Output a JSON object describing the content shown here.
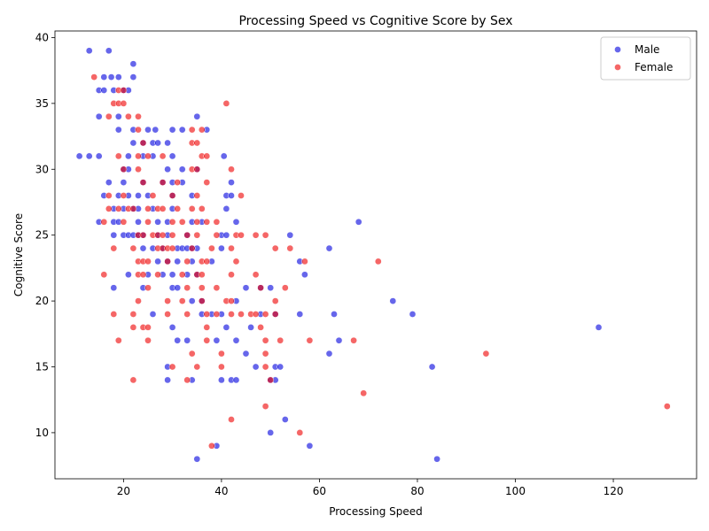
{
  "chart_data": {
    "type": "scatter",
    "title": "Processing Speed vs Cognitive Score by Sex",
    "xlabel": "Processing Speed",
    "ylabel": "Cognitive Score",
    "xlim": [
      6,
      137
    ],
    "ylim": [
      6.5,
      40.5
    ],
    "xticks": [
      20,
      40,
      60,
      80,
      100,
      120
    ],
    "yticks": [
      10,
      15,
      20,
      25,
      30,
      35,
      40
    ],
    "grid": false,
    "legend_position": "top-right",
    "series": [
      {
        "name": "Male",
        "color": "#0000dd",
        "points": [
          [
            13,
            39
          ],
          [
            17,
            39
          ],
          [
            22,
            38
          ],
          [
            16,
            37
          ],
          [
            17.5,
            37
          ],
          [
            19,
            37
          ],
          [
            22,
            37
          ],
          [
            15,
            36
          ],
          [
            16,
            36
          ],
          [
            18,
            36
          ],
          [
            20,
            36
          ],
          [
            21,
            36
          ],
          [
            15,
            34
          ],
          [
            19,
            34
          ],
          [
            35,
            34
          ],
          [
            19,
            33
          ],
          [
            22,
            33
          ],
          [
            25,
            33
          ],
          [
            26.5,
            33
          ],
          [
            30,
            33
          ],
          [
            32,
            33
          ],
          [
            37,
            33
          ],
          [
            22,
            32
          ],
          [
            24,
            32
          ],
          [
            26,
            32
          ],
          [
            27,
            32
          ],
          [
            29,
            32
          ],
          [
            11,
            31
          ],
          [
            13,
            31
          ],
          [
            15,
            31
          ],
          [
            21,
            31
          ],
          [
            24,
            31
          ],
          [
            26,
            31
          ],
          [
            30,
            31
          ],
          [
            40.5,
            31
          ],
          [
            20,
            30
          ],
          [
            21,
            30
          ],
          [
            29,
            30
          ],
          [
            32,
            30
          ],
          [
            35,
            30
          ],
          [
            17,
            29
          ],
          [
            20,
            29
          ],
          [
            24,
            29
          ],
          [
            28,
            29
          ],
          [
            30,
            29
          ],
          [
            32,
            29
          ],
          [
            42,
            29
          ],
          [
            16,
            28
          ],
          [
            19,
            28
          ],
          [
            21,
            28
          ],
          [
            23,
            28
          ],
          [
            25,
            28
          ],
          [
            30,
            28
          ],
          [
            34,
            28
          ],
          [
            41,
            28
          ],
          [
            42,
            28
          ],
          [
            18,
            27
          ],
          [
            20,
            27
          ],
          [
            22,
            27
          ],
          [
            23,
            27
          ],
          [
            26,
            27
          ],
          [
            30,
            27
          ],
          [
            41,
            27
          ],
          [
            15,
            26
          ],
          [
            18,
            26
          ],
          [
            19,
            26
          ],
          [
            23,
            26
          ],
          [
            27,
            26
          ],
          [
            29,
            26
          ],
          [
            34,
            26
          ],
          [
            36,
            26
          ],
          [
            43,
            26
          ],
          [
            68,
            26
          ],
          [
            18,
            25
          ],
          [
            20,
            25
          ],
          [
            21,
            25
          ],
          [
            22,
            25
          ],
          [
            23,
            25
          ],
          [
            24,
            25
          ],
          [
            27,
            25
          ],
          [
            29,
            25
          ],
          [
            33,
            25
          ],
          [
            40,
            25
          ],
          [
            41,
            25
          ],
          [
            54,
            25
          ],
          [
            24,
            24
          ],
          [
            26,
            24
          ],
          [
            28,
            24
          ],
          [
            31,
            24
          ],
          [
            32,
            24
          ],
          [
            33,
            24
          ],
          [
            34,
            24
          ],
          [
            35,
            24
          ],
          [
            40,
            24
          ],
          [
            62,
            24
          ],
          [
            27,
            23
          ],
          [
            29,
            23
          ],
          [
            31,
            23
          ],
          [
            34,
            23
          ],
          [
            38,
            23
          ],
          [
            56,
            23
          ],
          [
            21,
            22
          ],
          [
            25,
            22
          ],
          [
            28,
            22
          ],
          [
            30,
            22
          ],
          [
            33,
            22
          ],
          [
            35,
            22
          ],
          [
            57,
            22
          ],
          [
            18,
            21
          ],
          [
            24,
            21
          ],
          [
            30,
            21
          ],
          [
            31,
            21
          ],
          [
            45,
            21
          ],
          [
            48,
            21
          ],
          [
            50,
            21
          ],
          [
            34,
            20
          ],
          [
            36,
            20
          ],
          [
            43,
            20
          ],
          [
            75,
            20
          ],
          [
            26,
            19
          ],
          [
            36,
            19
          ],
          [
            38,
            19
          ],
          [
            40,
            19
          ],
          [
            48,
            19
          ],
          [
            51,
            19
          ],
          [
            56,
            19
          ],
          [
            63,
            19
          ],
          [
            79,
            19
          ],
          [
            30,
            18
          ],
          [
            41,
            18
          ],
          [
            46,
            18
          ],
          [
            117,
            18
          ],
          [
            31,
            17
          ],
          [
            33,
            17
          ],
          [
            39,
            17
          ],
          [
            43,
            17
          ],
          [
            64,
            17
          ],
          [
            45,
            16
          ],
          [
            62,
            16
          ],
          [
            29,
            15
          ],
          [
            47,
            15
          ],
          [
            51,
            15
          ],
          [
            52,
            15
          ],
          [
            83,
            15
          ],
          [
            29,
            14
          ],
          [
            34,
            14
          ],
          [
            40,
            14
          ],
          [
            42,
            14
          ],
          [
            43,
            14
          ],
          [
            50,
            14
          ],
          [
            51,
            14
          ],
          [
            53,
            11
          ],
          [
            50,
            10
          ],
          [
            39,
            9
          ],
          [
            58,
            9
          ],
          [
            35,
            8
          ],
          [
            84,
            8
          ]
        ]
      },
      {
        "name": "Female",
        "color": "#ee0000",
        "points": [
          [
            14,
            37
          ],
          [
            19,
            36
          ],
          [
            20,
            36
          ],
          [
            18,
            35
          ],
          [
            19,
            35
          ],
          [
            20,
            35
          ],
          [
            41,
            35
          ],
          [
            17,
            34
          ],
          [
            21,
            34
          ],
          [
            23,
            34
          ],
          [
            23,
            33
          ],
          [
            34,
            33
          ],
          [
            36,
            33
          ],
          [
            24,
            32
          ],
          [
            34,
            32
          ],
          [
            35,
            32
          ],
          [
            19,
            31
          ],
          [
            23,
            31
          ],
          [
            25,
            31
          ],
          [
            28,
            31
          ],
          [
            36,
            31
          ],
          [
            37,
            31
          ],
          [
            20,
            30
          ],
          [
            23,
            30
          ],
          [
            34,
            30
          ],
          [
            35,
            30
          ],
          [
            42,
            30
          ],
          [
            24,
            29
          ],
          [
            28,
            29
          ],
          [
            31,
            29
          ],
          [
            37,
            29
          ],
          [
            17,
            28
          ],
          [
            20,
            28
          ],
          [
            26,
            28
          ],
          [
            30,
            28
          ],
          [
            35,
            28
          ],
          [
            44,
            28
          ],
          [
            17,
            27
          ],
          [
            19,
            27
          ],
          [
            21,
            27
          ],
          [
            22,
            27
          ],
          [
            25,
            27
          ],
          [
            27,
            27
          ],
          [
            28,
            27
          ],
          [
            31,
            27
          ],
          [
            34,
            27
          ],
          [
            36,
            27
          ],
          [
            16,
            26
          ],
          [
            20,
            26
          ],
          [
            25,
            26
          ],
          [
            30,
            26
          ],
          [
            32,
            26
          ],
          [
            35,
            26
          ],
          [
            37,
            26
          ],
          [
            39,
            26
          ],
          [
            23,
            25
          ],
          [
            24,
            25
          ],
          [
            26,
            25
          ],
          [
            27,
            25
          ],
          [
            28,
            25
          ],
          [
            30,
            25
          ],
          [
            33,
            25
          ],
          [
            35,
            25
          ],
          [
            39,
            25
          ],
          [
            43,
            25
          ],
          [
            44,
            25
          ],
          [
            47,
            25
          ],
          [
            49,
            25
          ],
          [
            18,
            24
          ],
          [
            22,
            24
          ],
          [
            27,
            24
          ],
          [
            28,
            24
          ],
          [
            29,
            24
          ],
          [
            30,
            24
          ],
          [
            34,
            24
          ],
          [
            38,
            24
          ],
          [
            42,
            24
          ],
          [
            51,
            24
          ],
          [
            54,
            24
          ],
          [
            23,
            23
          ],
          [
            24,
            23
          ],
          [
            25,
            23
          ],
          [
            29,
            23
          ],
          [
            33,
            23
          ],
          [
            36,
            23
          ],
          [
            37,
            23
          ],
          [
            43,
            23
          ],
          [
            57,
            23
          ],
          [
            72,
            23
          ],
          [
            16,
            22
          ],
          [
            23,
            22
          ],
          [
            24,
            22
          ],
          [
            27,
            22
          ],
          [
            32,
            22
          ],
          [
            35,
            22
          ],
          [
            36,
            22
          ],
          [
            42,
            22
          ],
          [
            47,
            22
          ],
          [
            25,
            21
          ],
          [
            33,
            21
          ],
          [
            36,
            21
          ],
          [
            39,
            21
          ],
          [
            48,
            21
          ],
          [
            53,
            21
          ],
          [
            23,
            20
          ],
          [
            29,
            20
          ],
          [
            32,
            20
          ],
          [
            36,
            20
          ],
          [
            41,
            20
          ],
          [
            42,
            20
          ],
          [
            51,
            20
          ],
          [
            18,
            19
          ],
          [
            22,
            19
          ],
          [
            29,
            19
          ],
          [
            33,
            19
          ],
          [
            37,
            19
          ],
          [
            39,
            19
          ],
          [
            42,
            19
          ],
          [
            44,
            19
          ],
          [
            46,
            19
          ],
          [
            47,
            19
          ],
          [
            49,
            19
          ],
          [
            51,
            19
          ],
          [
            22,
            18
          ],
          [
            24,
            18
          ],
          [
            25,
            18
          ],
          [
            37,
            18
          ],
          [
            48,
            18
          ],
          [
            19,
            17
          ],
          [
            25,
            17
          ],
          [
            37,
            17
          ],
          [
            49,
            17
          ],
          [
            52,
            17
          ],
          [
            58,
            17
          ],
          [
            67,
            17
          ],
          [
            34,
            16
          ],
          [
            40,
            16
          ],
          [
            49,
            16
          ],
          [
            94,
            16
          ],
          [
            30,
            15
          ],
          [
            35,
            15
          ],
          [
            40,
            15
          ],
          [
            49,
            15
          ],
          [
            22,
            14
          ],
          [
            33,
            14
          ],
          [
            50,
            14
          ],
          [
            69,
            13
          ],
          [
            49,
            12
          ],
          [
            131,
            12
          ],
          [
            42,
            11
          ],
          [
            56,
            10
          ],
          [
            38,
            9
          ]
        ]
      }
    ]
  }
}
